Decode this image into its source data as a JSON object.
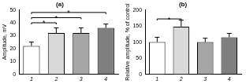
{
  "chart_data": [
    {
      "type": "bar",
      "title": "(a)",
      "y_label": "Amplitude, mV",
      "categories": [
        "1",
        "2",
        "3",
        "4"
      ],
      "values": [
        22,
        32,
        32,
        36
      ],
      "errors": [
        3,
        4,
        4,
        3
      ],
      "colors": [
        "#ffffff",
        "#d9d9d9",
        "#a6a6a6",
        "#7f7f7f"
      ],
      "ylim": [
        0,
        50
      ],
      "yticks": [
        0,
        10,
        20,
        30,
        40,
        50
      ],
      "grid": false,
      "annotations": [
        {
          "from": "1",
          "to": "2",
          "y": 40,
          "text": "*"
        },
        {
          "from": "1",
          "to": "3",
          "y": 44,
          "text": "*"
        },
        {
          "from": "1",
          "to": "4",
          "y": 48,
          "text": "*"
        }
      ]
    },
    {
      "type": "bar",
      "title": "(b)",
      "y_label": "Relative amplitude, % of control",
      "categories": [
        "1",
        "2",
        "3",
        "4"
      ],
      "values": [
        100,
        148,
        100,
        115
      ],
      "errors": [
        15,
        20,
        12,
        12
      ],
      "colors": [
        "#ffffff",
        "#d9d9d9",
        "#a6a6a6",
        "#7f7f7f"
      ],
      "ylim": [
        0,
        200
      ],
      "yticks": [
        0,
        50,
        100,
        150,
        200
      ],
      "grid": false,
      "annotations": [
        {
          "from": "1",
          "to": "2",
          "y": 172,
          "text": "*"
        }
      ]
    }
  ]
}
